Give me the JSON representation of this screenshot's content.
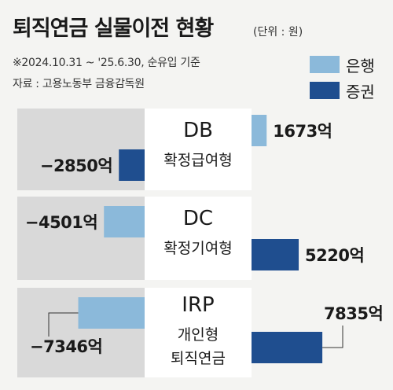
{
  "header": {
    "title": "퇴직연금 실물이전 현황",
    "unit": "(단위 : 원)",
    "period": "※2024.10.31 ~ '25.6.30, 순유입 기준",
    "source": "자료 : 고용노동부 금융감독원"
  },
  "legend": {
    "bank_label": "은행",
    "securities_label": "증권"
  },
  "colors": {
    "bank": "#8bb9da",
    "securities": "#1f4e8f",
    "panel_gray": "#d9d9d9",
    "panel_white": "#ffffff",
    "background": "#f4f4f2"
  },
  "chart_data": {
    "type": "bar",
    "orientation": "horizontal",
    "categories": [
      {
        "code": "DB",
        "name_lines": [
          "확정급여형"
        ],
        "bank": 1673,
        "securities": -2850
      },
      {
        "code": "DC",
        "name_lines": [
          "확정기여형"
        ],
        "bank": -4501,
        "securities": 5220
      },
      {
        "code": "IRP",
        "name_lines": [
          "개인형",
          "퇴직연금"
        ],
        "bank": -7346,
        "securities": 7835
      }
    ],
    "series": [
      {
        "name": "은행",
        "key": "bank",
        "color": "#8bb9da"
      },
      {
        "name": "증권",
        "key": "securities",
        "color": "#1f4e8f"
      }
    ],
    "value_suffix": "억",
    "xlim": [
      -8000,
      8000
    ]
  }
}
